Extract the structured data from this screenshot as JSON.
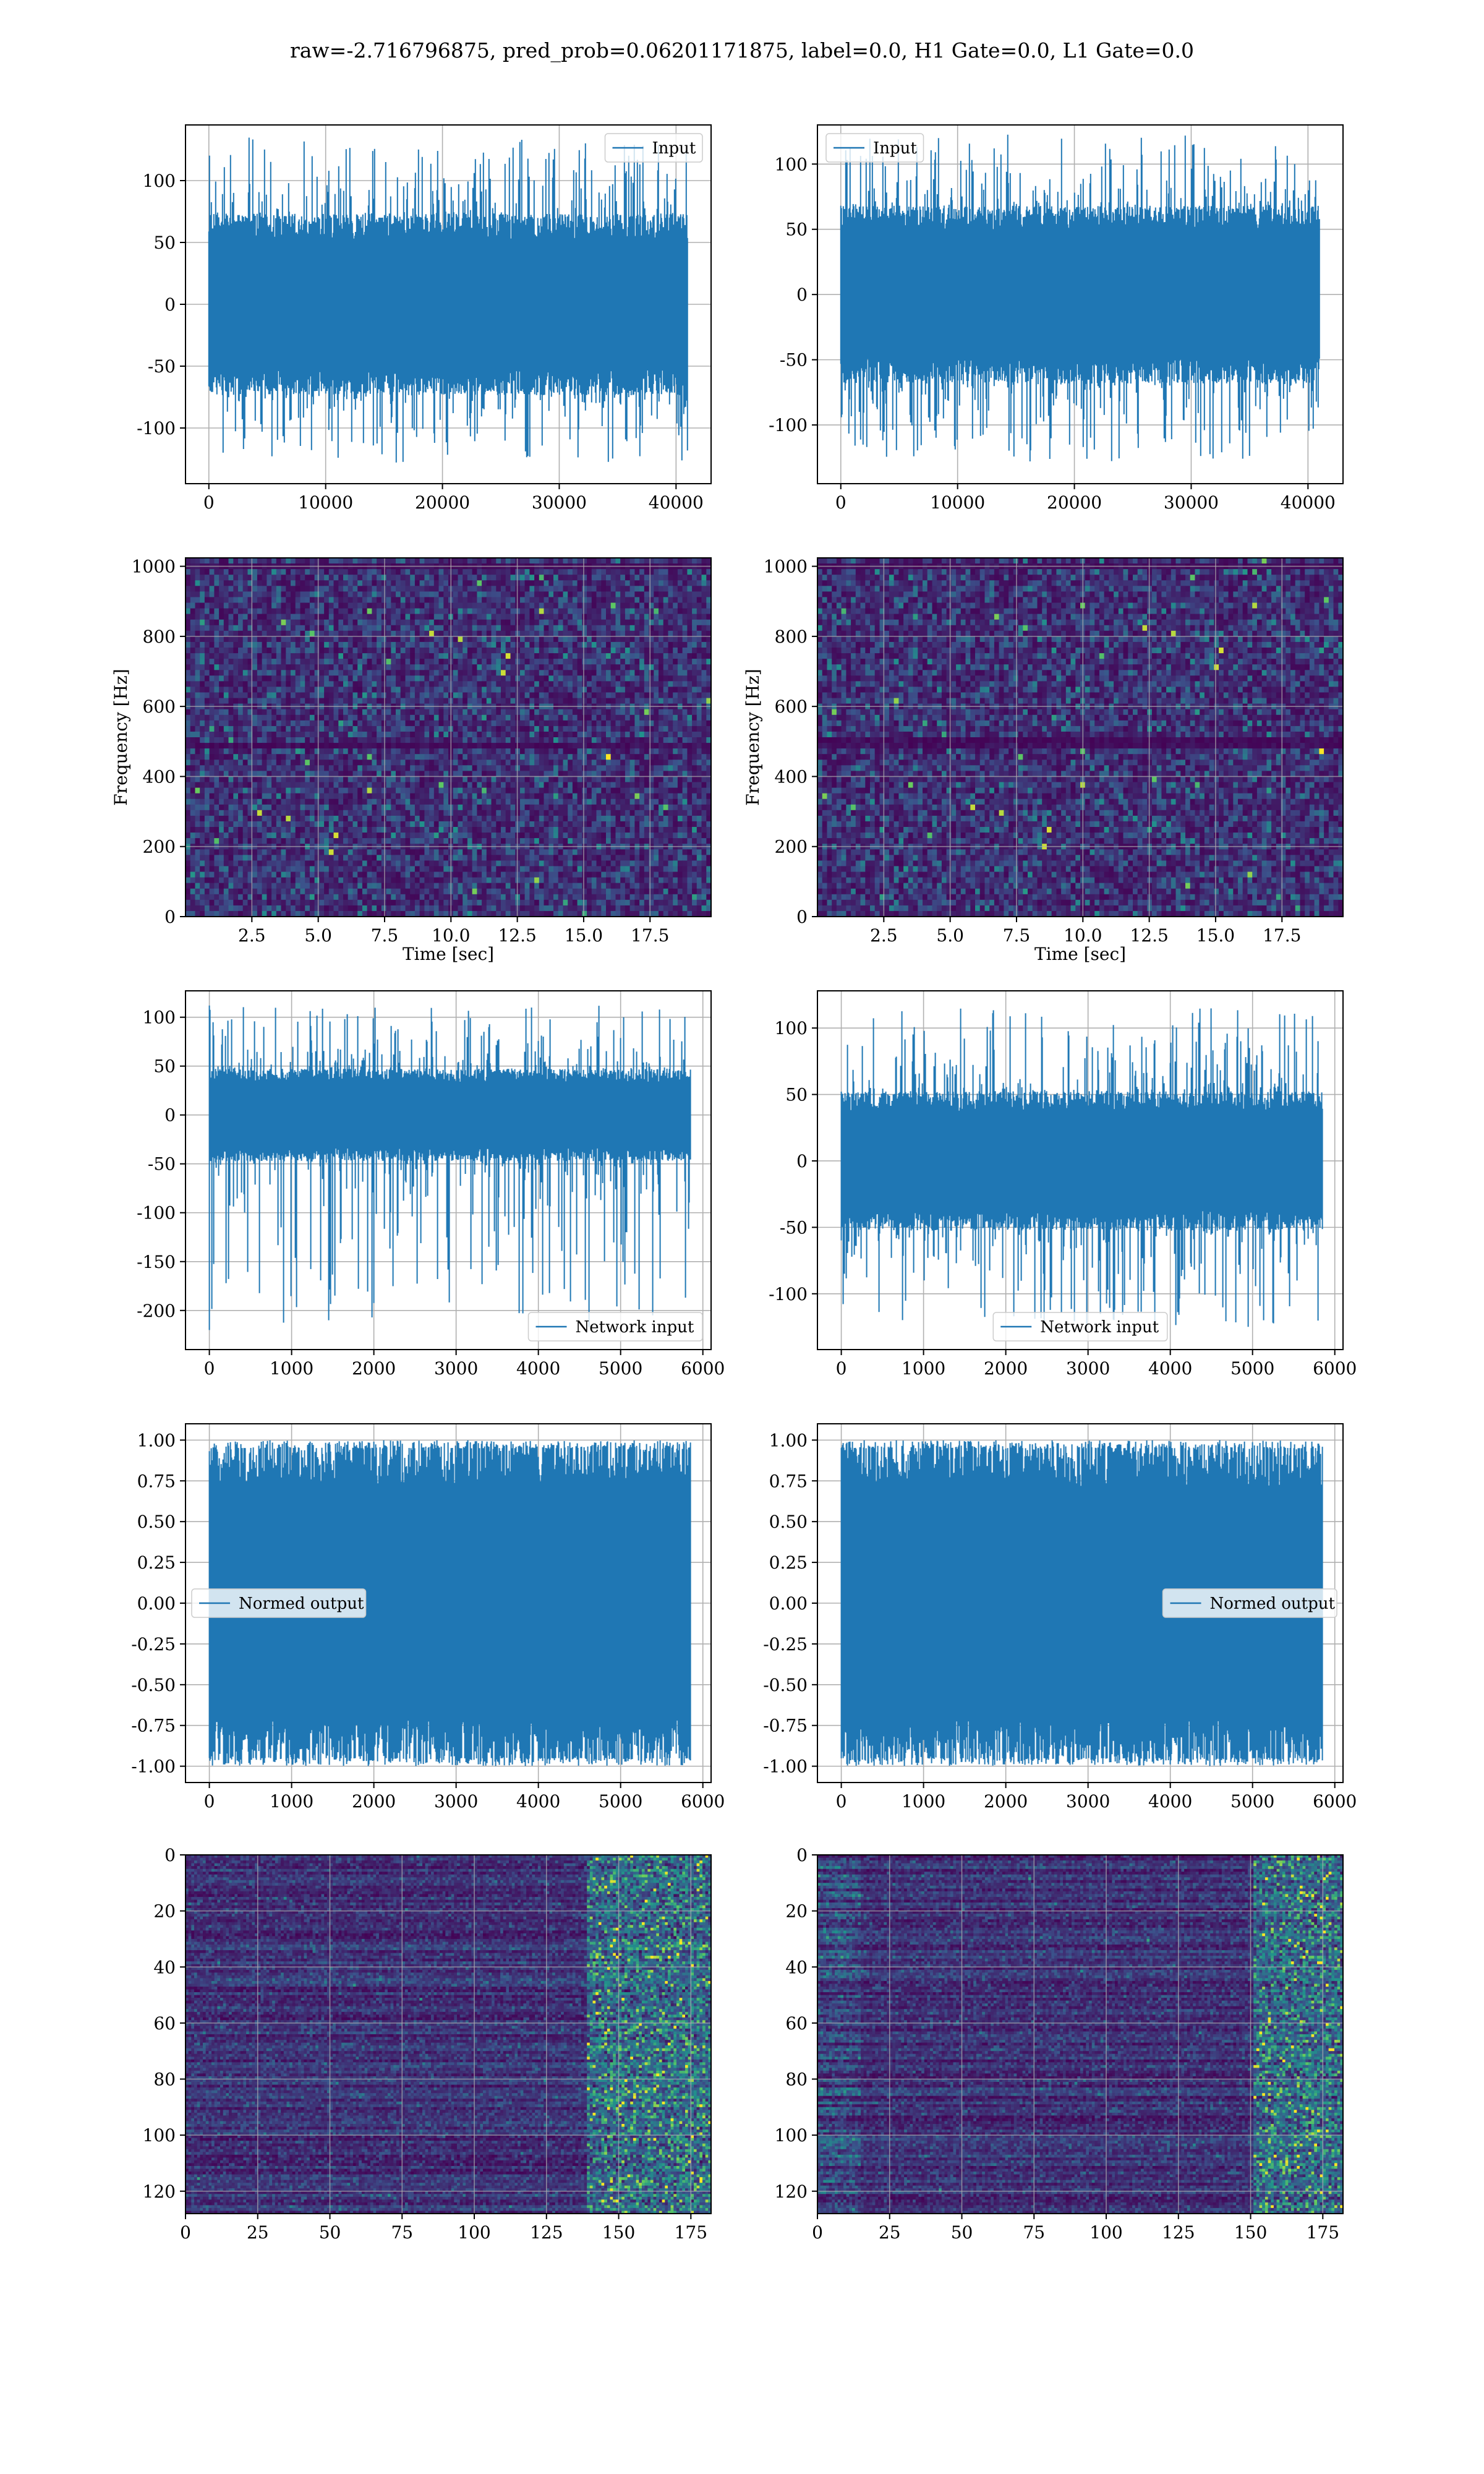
{
  "figure": {
    "suptitle": "raw=-2.716796875, pred_prob=0.06201171875, label=0.0, H1 Gate=0.0, L1 Gate=0.0"
  },
  "colors": {
    "series": "#1f77b4",
    "grid": "#b0b0b0",
    "axes": "#000000",
    "viridis_low": "#440154",
    "viridis_mid": "#21918c",
    "viridis_high": "#fde725"
  },
  "chart_data": [
    {
      "id": "h1-input",
      "type": "line",
      "column": "left",
      "row": 1,
      "xlim": [
        -2000,
        43000
      ],
      "ylim": [
        -145,
        145
      ],
      "xticks": [
        0,
        10000,
        20000,
        30000,
        40000
      ],
      "yticks": [
        -100,
        -50,
        0,
        50,
        100
      ],
      "series": [
        {
          "name": "Input",
          "n_points": 40960,
          "x": [
            0,
            40960
          ],
          "envelope_core": [
            -70,
            70
          ],
          "envelope_peaks": [
            -128,
            136
          ]
        }
      ],
      "legend": "upper right",
      "grid": true,
      "xlabel": "",
      "ylabel": ""
    },
    {
      "id": "l1-input",
      "type": "line",
      "column": "right",
      "row": 1,
      "xlim": [
        -2000,
        43000
      ],
      "ylim": [
        -145,
        130
      ],
      "xticks": [
        0,
        10000,
        20000,
        30000,
        40000
      ],
      "yticks": [
        -100,
        -50,
        0,
        50,
        100
      ],
      "series": [
        {
          "name": "Input",
          "n_points": 40960,
          "x": [
            0,
            40960
          ],
          "envelope_core": [
            -65,
            65
          ],
          "envelope_peaks": [
            -128,
            123
          ]
        }
      ],
      "legend": "upper left",
      "grid": true,
      "xlabel": "",
      "ylabel": ""
    },
    {
      "id": "h1-spectrogram",
      "type": "heatmap",
      "column": "left",
      "row": 2,
      "xlim": [
        0,
        19.8
      ],
      "ylim": [
        0,
        1024
      ],
      "xticks": [
        2.5,
        5.0,
        7.5,
        10.0,
        12.5,
        15.0,
        17.5
      ],
      "yticks": [
        0,
        200,
        400,
        600,
        800,
        1000
      ],
      "xlabel": "Time [sec]",
      "ylabel": "Frequency [Hz]",
      "colormap": "viridis",
      "dark_bands_hz": [
        490,
        1000
      ],
      "grid": true
    },
    {
      "id": "l1-spectrogram",
      "type": "heatmap",
      "column": "right",
      "row": 2,
      "xlim": [
        0,
        19.8
      ],
      "ylim": [
        0,
        1024
      ],
      "xticks": [
        2.5,
        5.0,
        7.5,
        10.0,
        12.5,
        15.0,
        17.5
      ],
      "yticks": [
        0,
        200,
        400,
        600,
        800,
        1000
      ],
      "xlabel": "Time [sec]",
      "ylabel": "Frequency [Hz]",
      "colormap": "viridis",
      "dark_bands_hz": [
        500,
        1000
      ],
      "grid": true
    },
    {
      "id": "h1-network-input",
      "type": "line",
      "column": "left",
      "row": 3,
      "xlim": [
        -290,
        6100
      ],
      "ylim": [
        -240,
        127
      ],
      "xticks": [
        0,
        1000,
        2000,
        3000,
        4000,
        5000,
        6000
      ],
      "yticks": [
        -200,
        -150,
        -100,
        -50,
        0,
        50,
        100
      ],
      "series": [
        {
          "name": "Network input",
          "n_points": 5850,
          "x": [
            0,
            5850
          ],
          "envelope_core": [
            -45,
            45
          ],
          "envelope_peaks": [
            -220,
            112
          ]
        }
      ],
      "legend": "lower right",
      "grid": true,
      "xlabel": "",
      "ylabel": ""
    },
    {
      "id": "l1-network-input",
      "type": "line",
      "column": "right",
      "row": 3,
      "xlim": [
        -290,
        6100
      ],
      "ylim": [
        -142,
        128
      ],
      "xticks": [
        0,
        1000,
        2000,
        3000,
        4000,
        5000,
        6000
      ],
      "yticks": [
        -100,
        -50,
        0,
        50,
        100
      ],
      "series": [
        {
          "name": "Network input",
          "n_points": 5850,
          "x": [
            0,
            5850
          ],
          "envelope_core": [
            -50,
            50
          ],
          "envelope_peaks": [
            -125,
            115
          ]
        }
      ],
      "legend": "lower center",
      "grid": true,
      "xlabel": "",
      "ylabel": ""
    },
    {
      "id": "h1-normed-output",
      "type": "line",
      "column": "left",
      "row": 4,
      "xlim": [
        -290,
        6100
      ],
      "ylim": [
        -1.1,
        1.1
      ],
      "xticks": [
        0,
        1000,
        2000,
        3000,
        4000,
        5000,
        6000
      ],
      "yticks": [
        -1.0,
        -0.75,
        -0.5,
        -0.25,
        0.0,
        0.25,
        0.5,
        0.75,
        1.0
      ],
      "series": [
        {
          "name": "Normed output",
          "n_points": 5850,
          "x": [
            0,
            5850
          ],
          "envelope_core": [
            -0.95,
            0.95
          ],
          "envelope_peaks": [
            -1.0,
            1.0
          ]
        }
      ],
      "legend": "center left",
      "grid": true,
      "xlabel": "",
      "ylabel": ""
    },
    {
      "id": "l1-normed-output",
      "type": "line",
      "column": "right",
      "row": 4,
      "xlim": [
        -290,
        6100
      ],
      "ylim": [
        -1.1,
        1.1
      ],
      "xticks": [
        0,
        1000,
        2000,
        3000,
        4000,
        5000,
        6000
      ],
      "yticks": [
        -1.0,
        -0.75,
        -0.5,
        -0.25,
        0.0,
        0.25,
        0.5,
        0.75,
        1.0
      ],
      "series": [
        {
          "name": "Normed output",
          "n_points": 5850,
          "x": [
            0,
            5850
          ],
          "envelope_core": [
            -0.95,
            0.95
          ],
          "envelope_peaks": [
            -1.0,
            1.0
          ]
        }
      ],
      "legend": "center right",
      "grid": true,
      "xlabel": "",
      "ylabel": ""
    },
    {
      "id": "h1-feature-map",
      "type": "heatmap",
      "column": "left",
      "row": 5,
      "xlim": [
        0,
        182
      ],
      "ylim": [
        128,
        0
      ],
      "xticks": [
        0,
        25,
        50,
        75,
        100,
        125,
        150,
        175
      ],
      "yticks": [
        0,
        20,
        40,
        60,
        80,
        100,
        120
      ],
      "colormap": "viridis",
      "rows": 128,
      "cols": 182,
      "hot_region_cols": [
        138,
        182
      ],
      "grid": true,
      "xlabel": "",
      "ylabel": ""
    },
    {
      "id": "l1-feature-map",
      "type": "heatmap",
      "column": "right",
      "row": 5,
      "xlim": [
        0,
        182
      ],
      "ylim": [
        128,
        0
      ],
      "xticks": [
        0,
        25,
        50,
        75,
        100,
        125,
        150,
        175
      ],
      "yticks": [
        0,
        20,
        40,
        60,
        80,
        100,
        120
      ],
      "colormap": "viridis",
      "rows": 128,
      "cols": 182,
      "hot_region_cols": [
        150,
        182
      ],
      "grid": true,
      "xlabel": "",
      "ylabel": ""
    }
  ]
}
